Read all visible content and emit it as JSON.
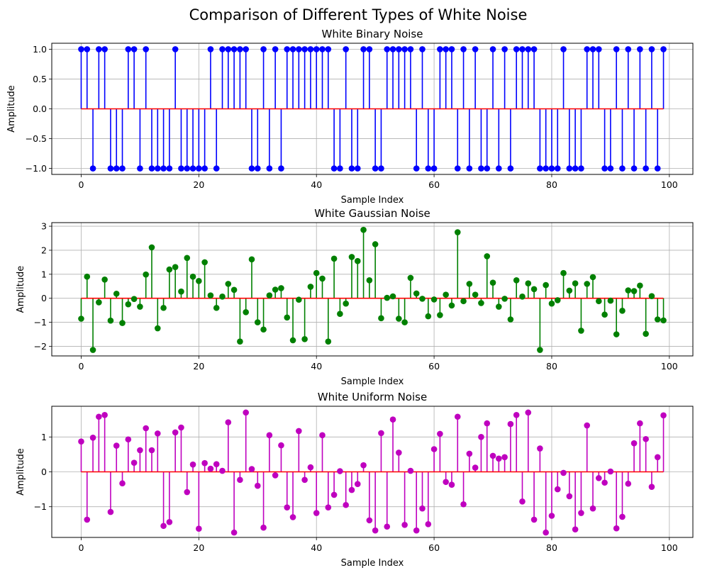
{
  "figure": {
    "suptitle": "Comparison of Different Types of White Noise"
  },
  "chart_data": [
    {
      "type": "stem",
      "title": "White Binary Noise",
      "xlabel": "Sample Index",
      "ylabel": "Amplitude",
      "xlim": [
        -5,
        104
      ],
      "ylim": [
        -1.1,
        1.1
      ],
      "xticks": [
        0,
        20,
        40,
        60,
        80,
        100
      ],
      "yticks": [
        -1.0,
        -0.5,
        0.0,
        0.5,
        1.0
      ],
      "ytick_labels": [
        "−1.0",
        "−0.5",
        "0.0",
        "0.5",
        "1.0"
      ],
      "grid": true,
      "color": "#0000ff",
      "baseline_color": "#ff0000",
      "x": [
        0,
        1,
        2,
        3,
        4,
        5,
        6,
        7,
        8,
        9,
        10,
        11,
        12,
        13,
        14,
        15,
        16,
        17,
        18,
        19,
        20,
        21,
        22,
        23,
        24,
        25,
        26,
        27,
        28,
        29,
        30,
        31,
        32,
        33,
        34,
        35,
        36,
        37,
        38,
        39,
        40,
        41,
        42,
        43,
        44,
        45,
        46,
        47,
        48,
        49,
        50,
        51,
        52,
        53,
        54,
        55,
        56,
        57,
        58,
        59,
        60,
        61,
        62,
        63,
        64,
        65,
        66,
        67,
        68,
        69,
        70,
        71,
        72,
        73,
        74,
        75,
        76,
        77,
        78,
        79,
        80,
        81,
        82,
        83,
        84,
        85,
        86,
        87,
        88,
        89,
        90,
        91,
        92,
        93,
        94,
        95,
        96,
        97,
        98,
        99
      ],
      "values": [
        1,
        1,
        -1,
        1,
        1,
        -1,
        -1,
        -1,
        1,
        1,
        -1,
        1,
        -1,
        -1,
        -1,
        -1,
        1,
        -1,
        -1,
        -1,
        -1,
        -1,
        1,
        -1,
        1,
        1,
        1,
        1,
        1,
        -1,
        -1,
        1,
        -1,
        1,
        -1,
        1,
        1,
        1,
        1,
        1,
        1,
        1,
        1,
        -1,
        -1,
        1,
        -1,
        -1,
        1,
        1,
        -1,
        -1,
        1,
        1,
        1,
        1,
        1,
        -1,
        1,
        -1,
        -1,
        1,
        1,
        1,
        -1,
        1,
        -1,
        1,
        -1,
        -1,
        1,
        -1,
        1,
        -1,
        1,
        1,
        1,
        1,
        -1,
        -1,
        -1,
        -1,
        1,
        -1,
        -1,
        -1,
        1,
        1,
        1,
        -1,
        -1,
        1,
        -1,
        1,
        -1,
        1,
        -1,
        1,
        -1,
        1
      ]
    },
    {
      "type": "stem",
      "title": "White Gaussian Noise",
      "xlabel": "Sample Index",
      "ylabel": "Amplitude",
      "xlim": [
        -5,
        104
      ],
      "ylim": [
        -2.4,
        3.15
      ],
      "xticks": [
        0,
        20,
        40,
        60,
        80,
        100
      ],
      "yticks": [
        -2,
        -1,
        0,
        1,
        2,
        3
      ],
      "ytick_labels": [
        "−2",
        "−1",
        "0",
        "1",
        "2",
        "3"
      ],
      "grid": true,
      "color": "#008000",
      "baseline_color": "#ff0000",
      "x": [
        0,
        1,
        2,
        3,
        4,
        5,
        6,
        7,
        8,
        9,
        10,
        11,
        12,
        13,
        14,
        15,
        16,
        17,
        18,
        19,
        20,
        21,
        22,
        23,
        24,
        25,
        26,
        27,
        28,
        29,
        30,
        31,
        32,
        33,
        34,
        35,
        36,
        37,
        38,
        39,
        40,
        41,
        42,
        43,
        44,
        45,
        46,
        47,
        48,
        49,
        50,
        51,
        52,
        53,
        54,
        55,
        56,
        57,
        58,
        59,
        60,
        61,
        62,
        63,
        64,
        65,
        66,
        67,
        68,
        69,
        70,
        71,
        72,
        73,
        74,
        75,
        76,
        77,
        78,
        79,
        80,
        81,
        82,
        83,
        84,
        85,
        86,
        87,
        88,
        89,
        90,
        91,
        92,
        93,
        94,
        95,
        96,
        97,
        98,
        99
      ],
      "values": [
        -0.85,
        0.9,
        -2.15,
        -0.17,
        0.78,
        -0.93,
        0.19,
        -1.03,
        -0.25,
        -0.03,
        -0.35,
        0.99,
        2.12,
        -1.25,
        -0.4,
        1.2,
        1.3,
        0.28,
        1.68,
        0.9,
        0.72,
        1.5,
        0.12,
        -0.4,
        0.07,
        0.6,
        0.35,
        -1.8,
        -0.58,
        1.62,
        -1.0,
        -1.3,
        0.12,
        0.36,
        0.42,
        -0.8,
        -1.75,
        -0.06,
        -1.7,
        0.48,
        1.05,
        0.82,
        -1.8,
        1.65,
        -0.65,
        -0.22,
        1.72,
        1.55,
        2.85,
        0.75,
        2.25,
        -0.83,
        0.02,
        0.08,
        -0.85,
        -1.0,
        0.85,
        0.2,
        -0.02,
        -0.75,
        -0.05,
        -0.7,
        0.15,
        -0.3,
        2.75,
        -0.12,
        0.6,
        0.15,
        -0.2,
        1.75,
        0.65,
        -0.35,
        -0.02,
        -0.88,
        0.75,
        0.07,
        0.62,
        0.38,
        -2.15,
        0.55,
        -0.22,
        -0.08,
        1.05,
        0.32,
        0.62,
        -1.35,
        0.6,
        0.88,
        -0.12,
        -0.68,
        -0.1,
        -1.5,
        -0.52,
        0.33,
        0.3,
        0.53,
        -1.48,
        0.09,
        -0.88,
        -0.92
      ]
    },
    {
      "type": "stem",
      "title": "White Uniform Noise",
      "xlabel": "Sample Index",
      "ylabel": "Amplitude",
      "xlim": [
        -5,
        104
      ],
      "ylim": [
        -1.88,
        1.88
      ],
      "xticks": [
        0,
        20,
        40,
        60,
        80,
        100
      ],
      "yticks": [
        -1,
        0,
        1
      ],
      "ytick_labels": [
        "−1",
        "0",
        "1"
      ],
      "grid": true,
      "color": "#bf00bf",
      "baseline_color": "#ff0000",
      "x": [
        0,
        1,
        2,
        3,
        4,
        5,
        6,
        7,
        8,
        9,
        10,
        11,
        12,
        13,
        14,
        15,
        16,
        17,
        18,
        19,
        20,
        21,
        22,
        23,
        24,
        25,
        26,
        27,
        28,
        29,
        30,
        31,
        32,
        33,
        34,
        35,
        36,
        37,
        38,
        39,
        40,
        41,
        42,
        43,
        44,
        45,
        46,
        47,
        48,
        49,
        50,
        51,
        52,
        53,
        54,
        55,
        56,
        57,
        58,
        59,
        60,
        61,
        62,
        63,
        64,
        65,
        66,
        67,
        68,
        69,
        70,
        71,
        72,
        73,
        74,
        75,
        76,
        77,
        78,
        79,
        80,
        81,
        82,
        83,
        84,
        85,
        86,
        87,
        88,
        89,
        90,
        91,
        92,
        93,
        94,
        95,
        96,
        97,
        98,
        99
      ],
      "values": [
        0.87,
        -1.37,
        0.98,
        1.58,
        1.63,
        -1.15,
        0.75,
        -0.33,
        0.93,
        0.26,
        0.62,
        1.25,
        0.62,
        1.1,
        -1.55,
        -1.44,
        1.13,
        1.27,
        -0.58,
        0.21,
        -1.63,
        0.25,
        0.09,
        0.22,
        0.03,
        1.42,
        -1.74,
        -0.23,
        1.7,
        0.08,
        -0.4,
        -1.6,
        1.05,
        -0.1,
        0.76,
        -1.02,
        -1.3,
        1.17,
        -0.23,
        0.13,
        -1.18,
        1.05,
        -1.02,
        -0.66,
        0.02,
        -0.95,
        -0.52,
        -0.35,
        0.19,
        -1.39,
        -1.68,
        1.11,
        -1.57,
        1.5,
        0.55,
        -1.52,
        0.03,
        -1.68,
        -1.05,
        -1.5,
        0.65,
        1.09,
        -0.29,
        -0.37,
        1.58,
        -0.93,
        0.52,
        0.12,
        1.0,
        1.39,
        0.46,
        0.38,
        0.42,
        1.37,
        1.63,
        -0.85,
        1.7,
        -1.37,
        0.67,
        -1.74,
        -1.26,
        -0.5,
        -0.03,
        -0.7,
        -1.65,
        -1.18,
        1.33,
        -1.05,
        -0.18,
        -0.31,
        0.01,
        -1.62,
        -1.29,
        -0.34,
        0.82,
        1.39,
        0.94,
        -0.43,
        0.42,
        1.62
      ]
    }
  ]
}
